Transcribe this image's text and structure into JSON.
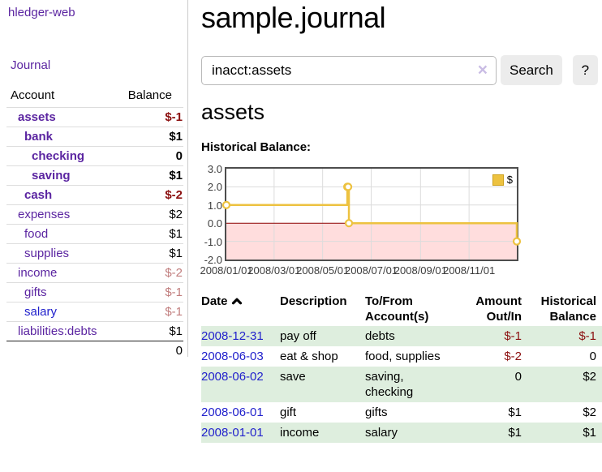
{
  "app": {
    "title": "hledger-web",
    "nav_journal": "Journal"
  },
  "sidebar": {
    "headers": {
      "account": "Account",
      "balance": "Balance"
    },
    "rows": [
      {
        "account": "assets",
        "depth": 1,
        "bold": true,
        "balance": "$-1"
      },
      {
        "account": "bank",
        "depth": 2,
        "bold": true,
        "balance": "$1"
      },
      {
        "account": "checking",
        "depth": 3,
        "bold": true,
        "balance": "0"
      },
      {
        "account": "saving",
        "depth": 3,
        "bold": true,
        "balance": "$1"
      },
      {
        "account": "cash",
        "depth": 2,
        "bold": true,
        "balance": "$-2"
      },
      {
        "account": "expenses",
        "depth": 1,
        "bold": false,
        "balance": "$2"
      },
      {
        "account": "food",
        "depth": 2,
        "bold": false,
        "balance": "$1"
      },
      {
        "account": "supplies",
        "depth": 2,
        "bold": false,
        "balance": "$1"
      },
      {
        "account": "income",
        "depth": 1,
        "bold": false,
        "balance": "$-2"
      },
      {
        "account": "gifts",
        "depth": 2,
        "bold": false,
        "balance": "$-1"
      },
      {
        "account": "salary",
        "depth": 2,
        "bold": false,
        "balance": "$-1",
        "link_style": "blue"
      },
      {
        "account": "liabilities:debts",
        "depth": 1,
        "bold": false,
        "balance": "$1"
      }
    ],
    "total": "0"
  },
  "main": {
    "title": "sample.journal",
    "search": {
      "value": "inacct:assets",
      "clear_icon": "×",
      "button": "Search",
      "help_button": "?"
    },
    "account_heading": "assets",
    "chart_label": "Historical Balance:"
  },
  "chart_data": {
    "type": "line",
    "step": true,
    "title": "Historical Balance",
    "legend": "$",
    "series": [
      {
        "name": "$",
        "points": [
          [
            "2008-01-01",
            1
          ],
          [
            "2008-06-01",
            2
          ],
          [
            "2008-06-02",
            2
          ],
          [
            "2008-06-03",
            0
          ],
          [
            "2008-12-31",
            -1
          ]
        ]
      }
    ],
    "x_range": [
      "2008-01-01",
      "2008-12-31"
    ],
    "ylim": [
      -2,
      3
    ],
    "y_ticks": [
      "3.0",
      "2.0",
      "1.0",
      "0.0",
      "-1.0",
      "-2.0"
    ],
    "x_ticks": [
      "2008/01/01",
      "2008/03/01",
      "2008/05/01",
      "2008/07/01",
      "2008/09/01",
      "2008/11/01"
    ],
    "colors": {
      "line": "#edc240",
      "negative_region": "#ffdddd",
      "zero_line": "#8b0000",
      "grid": "#dcdcdc",
      "border": "#4d4d4d"
    }
  },
  "register": {
    "headers": [
      "Date",
      "Description",
      "To/From Account(s)",
      "Amount Out/In",
      "Historical Balance"
    ],
    "sort_icon": "chevron-up",
    "rows": [
      {
        "date": "2008-12-31",
        "description": "pay off",
        "accounts": "debts",
        "amount": "$-1",
        "balance": "$-1"
      },
      {
        "date": "2008-06-03",
        "description": "eat & shop",
        "accounts": "food, supplies",
        "amount": "$-2",
        "balance": "0"
      },
      {
        "date": "2008-06-02",
        "description": "save",
        "accounts": "saving, checking",
        "amount": "0",
        "balance": "$2"
      },
      {
        "date": "2008-06-01",
        "description": "gift",
        "accounts": "gifts",
        "amount": "$1",
        "balance": "$2"
      },
      {
        "date": "2008-01-01",
        "description": "income",
        "accounts": "salary",
        "amount": "$1",
        "balance": "$1"
      }
    ]
  }
}
